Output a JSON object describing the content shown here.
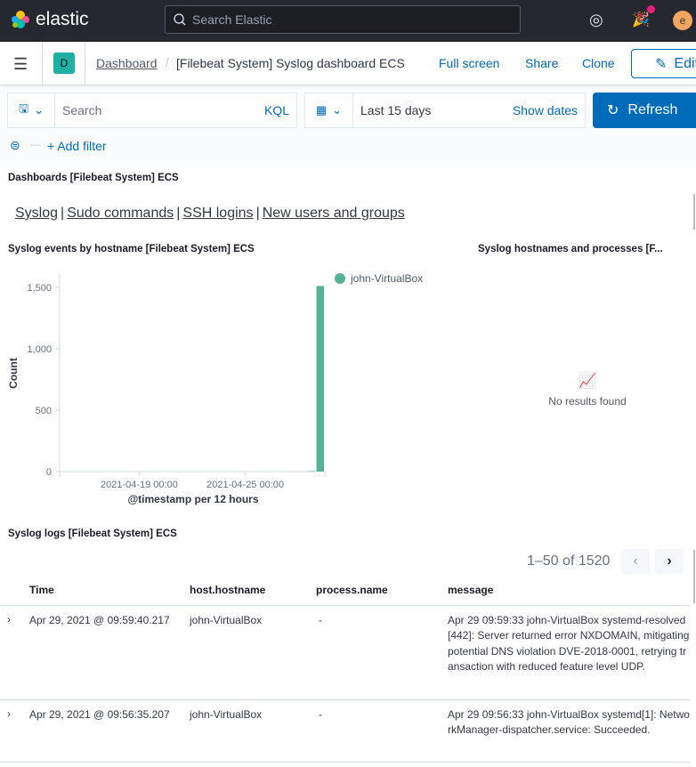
{
  "header": {
    "brand": "elastic",
    "search_placeholder": "Search Elastic",
    "avatar_initial": "e"
  },
  "nav": {
    "space_initial": "D",
    "breadcrumb": [
      "Dashboard",
      "[Filebeat System] Syslog dashboard ECS"
    ],
    "actions": [
      "Full screen",
      "Share",
      "Clone"
    ],
    "edit_label": "Edit"
  },
  "query": {
    "placeholder": "Search",
    "language": "KQL",
    "time_range": "Last 15 days",
    "show_dates": "Show dates",
    "refresh": "Refresh",
    "add_filter": "+ Add filter"
  },
  "panels": {
    "nav_panel": {
      "title": "Dashboards [Filebeat System] ECS",
      "links": [
        "Syslog",
        "Sudo commands",
        "SSH logins",
        "New users and groups"
      ]
    },
    "chart_panel": {
      "title": "Syslog events by hostname [Filebeat System] ECS"
    },
    "processes_panel": {
      "title": "Syslog hostnames and processes [F...",
      "empty": "No results found"
    },
    "logs_panel": {
      "title": "Syslog logs [Filebeat System] ECS",
      "pagination": "1–50 of 1520",
      "columns": [
        "Time",
        "host.hostname",
        "process.name",
        "message"
      ],
      "rows": [
        {
          "time": "Apr 29, 2021 @ 09:59:40.217",
          "host": "john-VirtualBox",
          "process": "-",
          "message": "Apr 29 09:59:33 john-VirtualBox systemd-resolved[442]: Server returned error NXDOMAIN, mitigating potential DNS violation DVE-2018-0001, retrying transaction with reduced feature level UDP."
        },
        {
          "time": "Apr 29, 2021 @ 09:56:35.207",
          "host": "john-VirtualBox",
          "process": "-",
          "message": "Apr 29 09:56:33 john-VirtualBox systemd[1]: NetworkManager-dispatcher.service: Succeeded."
        }
      ]
    }
  },
  "chart_data": {
    "type": "bar",
    "xlabel": "@timestamp per 12 hours",
    "ylabel": "Count",
    "x_ticks": [
      "2021-04-19 00:00",
      "2021-04-25 00:00"
    ],
    "y_ticks": [
      "0",
      "500",
      "1,000",
      "1,500"
    ],
    "ylim": [
      0,
      1600
    ],
    "xlim": [
      "2021-04-14 12:00",
      "2021-04-29 12:00"
    ],
    "legend_position": "top-right",
    "grid": false,
    "series": [
      {
        "name": "john-VirtualBox",
        "color": "#54b399",
        "x": [
          "2021-04-28 12:00",
          "2021-04-29 00:00"
        ],
        "values": [
          10,
          1510
        ]
      }
    ]
  }
}
